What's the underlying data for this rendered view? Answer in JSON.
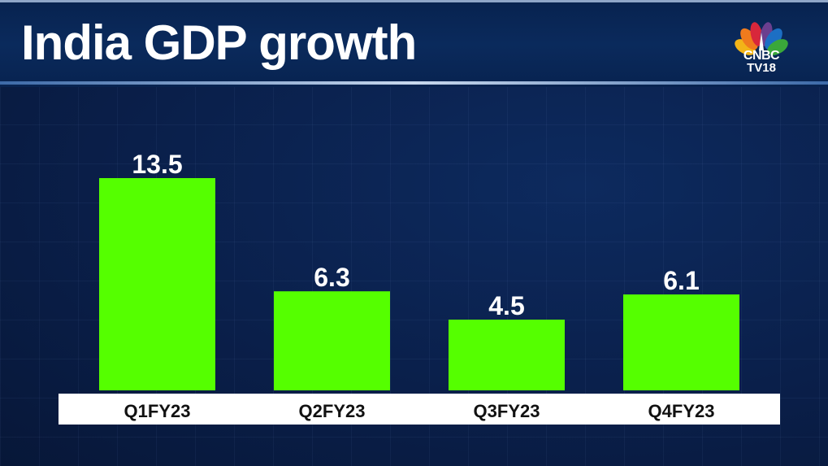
{
  "header": {
    "title": "India GDP growth",
    "logo": {
      "name": "cnbc-peacock-logo",
      "line1": "CNBC",
      "line2": "TV18"
    }
  },
  "colors": {
    "bar": "#55ff00",
    "background": "#0a1f4a",
    "label_band": "#ffffff",
    "value_text": "#ffffff",
    "category_text": "#111111"
  },
  "chart_data": {
    "type": "bar",
    "title": "India GDP growth",
    "xlabel": "",
    "ylabel": "",
    "categories": [
      "Q1FY23",
      "Q2FY23",
      "Q3FY23",
      "Q4FY23"
    ],
    "values": [
      13.5,
      6.3,
      4.5,
      6.1
    ],
    "data_labels": [
      "13.5",
      "6.3",
      "4.5",
      "6.1"
    ],
    "ylim": [
      0,
      13.5
    ],
    "grid": false,
    "legend": "none"
  }
}
